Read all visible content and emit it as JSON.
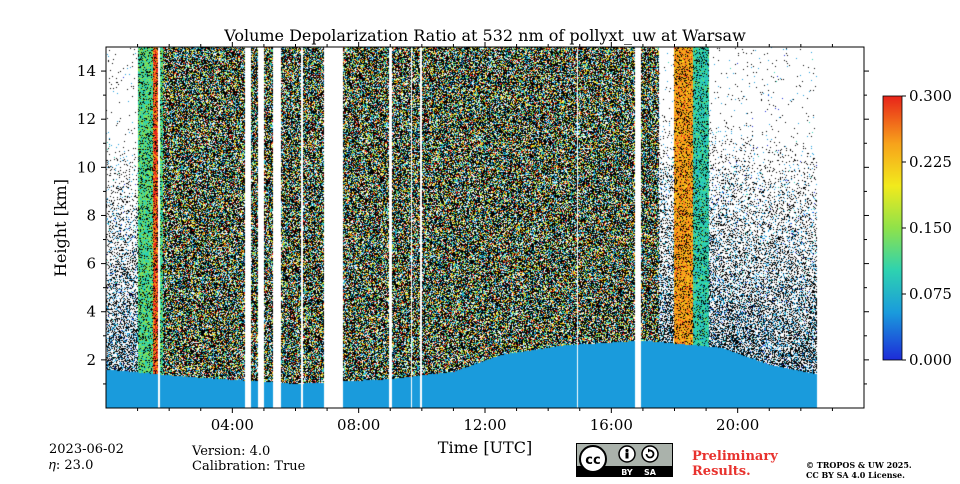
{
  "chart_data": {
    "type": "heatmap",
    "title": "Volume Depolarization Ratio at 532 nm of pollyxt_uw at Warsaw",
    "xlabel": "Time [UTC]",
    "ylabel": "Height [km]",
    "xlim_hours": [
      0,
      24
    ],
    "ylim_km": [
      0,
      15
    ],
    "x_tick_labels": [
      {
        "hour": 4,
        "label": "04:00"
      },
      {
        "hour": 8,
        "label": "08:00"
      },
      {
        "hour": 12,
        "label": "12:00"
      },
      {
        "hour": 16,
        "label": "16:00"
      },
      {
        "hour": 20,
        "label": "20:00"
      }
    ],
    "x_minor_tick_hours": [
      1,
      2,
      3,
      5,
      6,
      7,
      9,
      10,
      11,
      13,
      14,
      15,
      17,
      18,
      19,
      21,
      22,
      23
    ],
    "y_ticks_km": [
      2,
      4,
      6,
      8,
      10,
      12,
      14
    ],
    "y_tick_labels": [
      "2",
      "4",
      "6",
      "8",
      "10",
      "12",
      "14"
    ],
    "colorbar": {
      "range": [
        0.0,
        0.3
      ],
      "ticks": [
        0.0,
        0.075,
        0.15,
        0.225,
        0.3
      ],
      "tick_labels": [
        "0.000",
        "0.075",
        "0.150",
        "0.225",
        "0.300"
      ],
      "colors": [
        "#1d2bd8",
        "#1a9bdc",
        "#2ed2b0",
        "#8fe24a",
        "#f2ea1c",
        "#f7a21b",
        "#e8231a"
      ]
    },
    "data_end_hour": 22.5,
    "no_data_gaps_hours": [
      [
        1.66,
        1.72
      ],
      [
        4.4,
        4.6
      ],
      [
        4.82,
        5.0
      ],
      [
        5.3,
        5.55
      ],
      [
        6.18,
        6.24
      ],
      [
        6.9,
        7.5
      ],
      [
        8.97,
        9.05
      ],
      [
        9.65,
        9.7
      ],
      [
        9.95,
        10.0
      ],
      [
        14.92,
        14.95
      ],
      [
        16.75,
        16.95
      ]
    ],
    "cloud_bands": [
      {
        "start_hour": 1.0,
        "end_hour": 1.8,
        "top_km": 15,
        "depol_level": 0.12
      },
      {
        "start_hour": 1.5,
        "end_hour": 1.66,
        "top_km": 15,
        "depol_level": 0.28
      },
      {
        "start_hour": 18.0,
        "end_hour": 18.7,
        "top_km": 15,
        "depol_level": 0.25
      },
      {
        "start_hour": 18.6,
        "end_hour": 19.1,
        "top_km": 15,
        "depol_level": 0.1
      }
    ],
    "boundary_layer_top_km": [
      {
        "hour": 0.0,
        "km": 1.6
      },
      {
        "hour": 2.5,
        "km": 1.3
      },
      {
        "hour": 6.0,
        "km": 1.0
      },
      {
        "hour": 9.0,
        "km": 1.2
      },
      {
        "hour": 11.0,
        "km": 1.5
      },
      {
        "hour": 12.5,
        "km": 2.2
      },
      {
        "hour": 14.5,
        "km": 2.6
      },
      {
        "hour": 17.0,
        "km": 2.8
      },
      {
        "hour": 19.5,
        "km": 2.5
      },
      {
        "hour": 21.0,
        "km": 1.8
      },
      {
        "hour": 22.5,
        "km": 1.4
      }
    ],
    "aerosol_layer_depol_level": 0.05
  },
  "footer": {
    "date": "2023-06-02",
    "eta": "𝜂: 23.0",
    "version": "Version: 4.0",
    "calibration": "Calibration: True",
    "preliminary_line1": "Preliminary",
    "preliminary_line2": "Results.",
    "copyright_line1": "© TROPOS & UW 2025.",
    "copyright_line2": "CC BY SA 4.0 License.",
    "license_badge": {
      "cc": "cc",
      "by": "BY",
      "sa": "SA"
    }
  }
}
